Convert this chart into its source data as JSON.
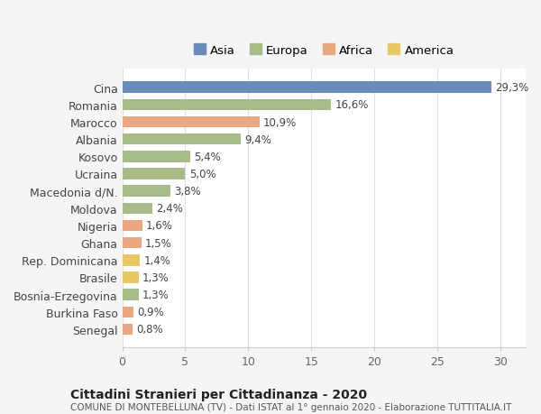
{
  "categories": [
    "Cina",
    "Romania",
    "Marocco",
    "Albania",
    "Kosovo",
    "Ucraina",
    "Macedonia d/N.",
    "Moldova",
    "Nigeria",
    "Ghana",
    "Rep. Dominicana",
    "Brasile",
    "Bosnia-Erzegovina",
    "Burkina Faso",
    "Senegal"
  ],
  "values": [
    29.3,
    16.6,
    10.9,
    9.4,
    5.4,
    5.0,
    3.8,
    2.4,
    1.6,
    1.5,
    1.4,
    1.3,
    1.3,
    0.9,
    0.8
  ],
  "labels": [
    "29,3%",
    "16,6%",
    "10,9%",
    "9,4%",
    "5,4%",
    "5,0%",
    "3,8%",
    "2,4%",
    "1,6%",
    "1,5%",
    "1,4%",
    "1,3%",
    "1,3%",
    "0,9%",
    "0,8%"
  ],
  "colors": [
    "#6b8cba",
    "#a8bc8a",
    "#e8a882",
    "#a8bc8a",
    "#a8bc8a",
    "#a8bc8a",
    "#a8bc8a",
    "#a8bc8a",
    "#e8a882",
    "#e8a882",
    "#e8c866",
    "#e8c866",
    "#a8bc8a",
    "#e8a882",
    "#e8a882"
  ],
  "legend": [
    {
      "label": "Asia",
      "color": "#6b8cba"
    },
    {
      "label": "Europa",
      "color": "#a8bc8a"
    },
    {
      "label": "Africa",
      "color": "#e8a882"
    },
    {
      "label": "America",
      "color": "#e8c866"
    }
  ],
  "title": "Cittadini Stranieri per Cittadinanza - 2020",
  "subtitle": "COMUNE DI MONTEBELLUNA (TV) - Dati ISTAT al 1° gennaio 2020 - Elaborazione TUTTITALIA.IT",
  "xlim": [
    0,
    32
  ],
  "xticks": [
    0,
    5,
    10,
    15,
    20,
    25,
    30
  ],
  "background_color": "#f5f5f5",
  "plot_background": "#ffffff",
  "grid_color": "#e0e0e0"
}
